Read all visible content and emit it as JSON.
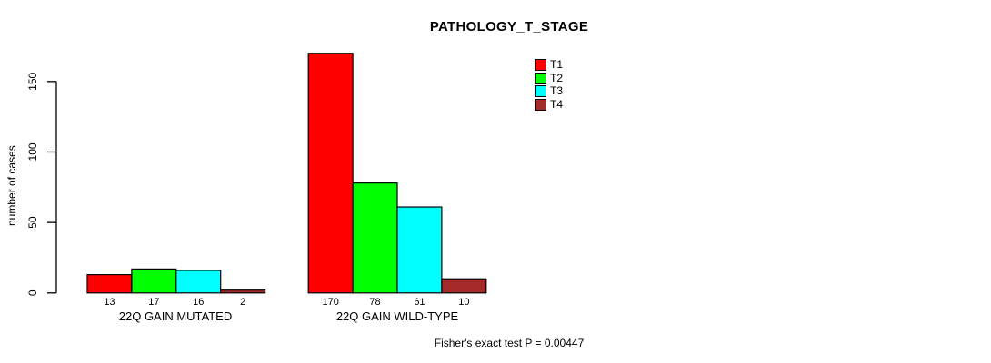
{
  "title": "PATHOLOGY_T_STAGE",
  "caption": "Fisher's exact test P = 0.00447",
  "chart_data": {
    "type": "bar",
    "title": "PATHOLOGY_T_STAGE",
    "categories": [
      "22Q GAIN MUTATED",
      "22Q GAIN WILD-TYPE"
    ],
    "series": [
      {
        "name": "T1",
        "color": "#ff0000",
        "values": [
          13,
          170
        ]
      },
      {
        "name": "T2",
        "color": "#00ff00",
        "values": [
          17,
          78
        ]
      },
      {
        "name": "T3",
        "color": "#00ffff",
        "values": [
          16,
          61
        ]
      },
      {
        "name": "T4",
        "color": "#a52a2a",
        "values": [
          2,
          10
        ]
      }
    ],
    "ylabel": "number of cases",
    "xlabel": "",
    "yticks": [
      0,
      50,
      100,
      150
    ],
    "ylim": [
      0,
      175
    ],
    "show_bar_value_labels": true,
    "grid": false,
    "legend_position": "top-right",
    "annotation": "Fisher's exact test P = 0.00447",
    "axis_color": "#000000",
    "bar_border_color": "#000000"
  }
}
